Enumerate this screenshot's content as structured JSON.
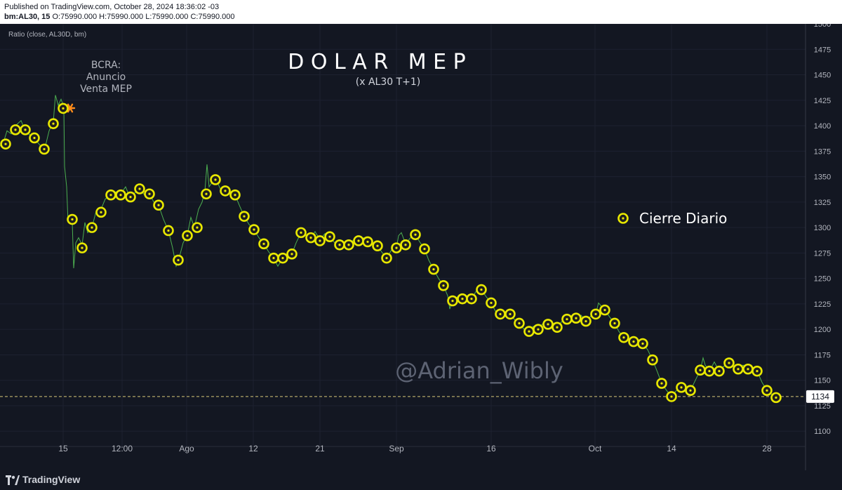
{
  "header": {
    "published": "Published on TradingView.com, October 28, 2024 18:36:02 -03",
    "symbol": "bm:AL30, 15",
    "ohlc": {
      "o_label": "O:",
      "o": "75990.000",
      "h_label": "H:",
      "h": "75990.000",
      "l_label": "L:",
      "l": "75990.000",
      "c_label": "C:",
      "c": "75990.000"
    }
  },
  "indicator_label": "Ratio (close, AL30D, bm)",
  "footer": {
    "brand": "TradingView"
  },
  "colors": {
    "background": "#131722",
    "line": "#4caf50",
    "marker_ring": "#e8e800",
    "marker_center": "#1e1e1e",
    "annotation": "#b2b5be",
    "annotation_star": "#ff8c1a",
    "last_price_badge": "#ffffff",
    "last_price_line": "#d8c878"
  },
  "chart_data": {
    "type": "line",
    "title": "D O L A R   M E P",
    "subtitle": "(x AL30 T+1)",
    "legend": {
      "label": "Cierre Diario",
      "position": "right"
    },
    "watermark": "@Adrian_Wibly",
    "annotation": {
      "lines": [
        "BCRA:",
        "Anuncio",
        "Venta MEP"
      ],
      "x": 90.5,
      "y": 1422
    },
    "last_price": {
      "label": "1134",
      "value": 1134
    },
    "x_ticks": [
      {
        "x": 90,
        "label": "15"
      },
      {
        "x": 174,
        "label": "12:00"
      },
      {
        "x": 266,
        "label": "Ago"
      },
      {
        "x": 361,
        "label": "12"
      },
      {
        "x": 456,
        "label": "21"
      },
      {
        "x": 565,
        "label": "Sep"
      },
      {
        "x": 700,
        "label": "16"
      },
      {
        "x": 848,
        "label": "Oct"
      },
      {
        "x": 957,
        "label": "14"
      },
      {
        "x": 1093,
        "label": "28"
      }
    ],
    "xlim": [
      0,
      1148
    ],
    "y_ticks": [
      1100,
      1125,
      1150,
      1175,
      1200,
      1225,
      1250,
      1275,
      1300,
      1325,
      1350,
      1375,
      1400,
      1425,
      1450,
      1475,
      1500
    ],
    "ylim": [
      1085,
      1500
    ],
    "daily_close": [
      {
        "x": 8,
        "y": 1382
      },
      {
        "x": 22,
        "y": 1396
      },
      {
        "x": 36,
        "y": 1396
      },
      {
        "x": 49,
        "y": 1388
      },
      {
        "x": 63,
        "y": 1377
      },
      {
        "x": 76,
        "y": 1402
      },
      {
        "x": 90,
        "y": 1417
      },
      {
        "x": 103,
        "y": 1308
      },
      {
        "x": 117,
        "y": 1280
      },
      {
        "x": 131,
        "y": 1300
      },
      {
        "x": 144,
        "y": 1315
      },
      {
        "x": 158,
        "y": 1332
      },
      {
        "x": 172,
        "y": 1332
      },
      {
        "x": 186,
        "y": 1330
      },
      {
        "x": 199,
        "y": 1338
      },
      {
        "x": 213,
        "y": 1333
      },
      {
        "x": 226,
        "y": 1322
      },
      {
        "x": 240,
        "y": 1297
      },
      {
        "x": 254,
        "y": 1268
      },
      {
        "x": 267,
        "y": 1292
      },
      {
        "x": 281,
        "y": 1300
      },
      {
        "x": 294,
        "y": 1333
      },
      {
        "x": 307,
        "y": 1347
      },
      {
        "x": 321,
        "y": 1336
      },
      {
        "x": 335,
        "y": 1332
      },
      {
        "x": 348,
        "y": 1311
      },
      {
        "x": 362,
        "y": 1298
      },
      {
        "x": 376,
        "y": 1284
      },
      {
        "x": 390,
        "y": 1270
      },
      {
        "x": 403,
        "y": 1270
      },
      {
        "x": 416,
        "y": 1274
      },
      {
        "x": 429,
        "y": 1295
      },
      {
        "x": 443,
        "y": 1290
      },
      {
        "x": 456,
        "y": 1287
      },
      {
        "x": 470,
        "y": 1291
      },
      {
        "x": 484,
        "y": 1283
      },
      {
        "x": 497,
        "y": 1283
      },
      {
        "x": 511,
        "y": 1287
      },
      {
        "x": 524,
        "y": 1286
      },
      {
        "x": 538,
        "y": 1282
      },
      {
        "x": 551,
        "y": 1270
      },
      {
        "x": 565,
        "y": 1280
      },
      {
        "x": 578,
        "y": 1283
      },
      {
        "x": 592,
        "y": 1293
      },
      {
        "x": 605,
        "y": 1279
      },
      {
        "x": 618,
        "y": 1259
      },
      {
        "x": 632,
        "y": 1243
      },
      {
        "x": 645,
        "y": 1228
      },
      {
        "x": 659,
        "y": 1230
      },
      {
        "x": 672,
        "y": 1230
      },
      {
        "x": 686,
        "y": 1239
      },
      {
        "x": 700,
        "y": 1226
      },
      {
        "x": 713,
        "y": 1215
      },
      {
        "x": 727,
        "y": 1215
      },
      {
        "x": 740,
        "y": 1206
      },
      {
        "x": 754,
        "y": 1198
      },
      {
        "x": 767,
        "y": 1200
      },
      {
        "x": 781,
        "y": 1205
      },
      {
        "x": 794,
        "y": 1202
      },
      {
        "x": 808,
        "y": 1210
      },
      {
        "x": 821,
        "y": 1211
      },
      {
        "x": 835,
        "y": 1208
      },
      {
        "x": 849,
        "y": 1215
      },
      {
        "x": 862,
        "y": 1219
      },
      {
        "x": 876,
        "y": 1206
      },
      {
        "x": 889,
        "y": 1192
      },
      {
        "x": 903,
        "y": 1188
      },
      {
        "x": 916,
        "y": 1186
      },
      {
        "x": 930,
        "y": 1170
      },
      {
        "x": 943,
        "y": 1147
      },
      {
        "x": 957,
        "y": 1134
      },
      {
        "x": 971,
        "y": 1143
      },
      {
        "x": 984,
        "y": 1140
      },
      {
        "x": 998,
        "y": 1160
      },
      {
        "x": 1011,
        "y": 1159
      },
      {
        "x": 1025,
        "y": 1159
      },
      {
        "x": 1039,
        "y": 1167
      },
      {
        "x": 1052,
        "y": 1161
      },
      {
        "x": 1066,
        "y": 1161
      },
      {
        "x": 1079,
        "y": 1159
      },
      {
        "x": 1093,
        "y": 1140
      },
      {
        "x": 1106,
        "y": 1133
      }
    ],
    "intraday": [
      {
        "x": 0,
        "y": 1380
      },
      {
        "x": 6,
        "y": 1386
      },
      {
        "x": 10,
        "y": 1395
      },
      {
        "x": 16,
        "y": 1392
      },
      {
        "x": 22,
        "y": 1400
      },
      {
        "x": 30,
        "y": 1405
      },
      {
        "x": 36,
        "y": 1395
      },
      {
        "x": 44,
        "y": 1390
      },
      {
        "x": 52,
        "y": 1385
      },
      {
        "x": 58,
        "y": 1380
      },
      {
        "x": 64,
        "y": 1378
      },
      {
        "x": 70,
        "y": 1395
      },
      {
        "x": 76,
        "y": 1404
      },
      {
        "x": 79,
        "y": 1430
      },
      {
        "x": 83,
        "y": 1420
      },
      {
        "x": 87,
        "y": 1426
      },
      {
        "x": 91,
        "y": 1418
      },
      {
        "x": 92,
        "y": 1360
      },
      {
        "x": 95,
        "y": 1340
      },
      {
        "x": 97,
        "y": 1305
      },
      {
        "x": 100,
        "y": 1310
      },
      {
        "x": 103,
        "y": 1305
      },
      {
        "x": 105,
        "y": 1260
      },
      {
        "x": 108,
        "y": 1285
      },
      {
        "x": 112,
        "y": 1290
      },
      {
        "x": 117,
        "y": 1283
      },
      {
        "x": 121,
        "y": 1305
      },
      {
        "x": 125,
        "y": 1295
      },
      {
        "x": 131,
        "y": 1300
      },
      {
        "x": 137,
        "y": 1316
      },
      {
        "x": 144,
        "y": 1318
      },
      {
        "x": 150,
        "y": 1328
      },
      {
        "x": 158,
        "y": 1332
      },
      {
        "x": 165,
        "y": 1335
      },
      {
        "x": 172,
        "y": 1333
      },
      {
        "x": 179,
        "y": 1340
      },
      {
        "x": 186,
        "y": 1328
      },
      {
        "x": 192,
        "y": 1334
      },
      {
        "x": 199,
        "y": 1338
      },
      {
        "x": 206,
        "y": 1332
      },
      {
        "x": 213,
        "y": 1333
      },
      {
        "x": 220,
        "y": 1324
      },
      {
        "x": 226,
        "y": 1322
      },
      {
        "x": 233,
        "y": 1308
      },
      {
        "x": 240,
        "y": 1297
      },
      {
        "x": 246,
        "y": 1280
      },
      {
        "x": 251,
        "y": 1262
      },
      {
        "x": 256,
        "y": 1272
      },
      {
        "x": 261,
        "y": 1285
      },
      {
        "x": 267,
        "y": 1293
      },
      {
        "x": 272,
        "y": 1310
      },
      {
        "x": 277,
        "y": 1300
      },
      {
        "x": 283,
        "y": 1318
      },
      {
        "x": 288,
        "y": 1325
      },
      {
        "x": 292,
        "y": 1336
      },
      {
        "x": 295,
        "y": 1362
      },
      {
        "x": 298,
        "y": 1340
      },
      {
        "x": 303,
        "y": 1345
      },
      {
        "x": 308,
        "y": 1347
      },
      {
        "x": 314,
        "y": 1338
      },
      {
        "x": 321,
        "y": 1336
      },
      {
        "x": 328,
        "y": 1333
      },
      {
        "x": 335,
        "y": 1332
      },
      {
        "x": 341,
        "y": 1322
      },
      {
        "x": 348,
        "y": 1311
      },
      {
        "x": 355,
        "y": 1303
      },
      {
        "x": 362,
        "y": 1298
      },
      {
        "x": 369,
        "y": 1290
      },
      {
        "x": 376,
        "y": 1284
      },
      {
        "x": 383,
        "y": 1276
      },
      {
        "x": 390,
        "y": 1270
      },
      {
        "x": 396,
        "y": 1262
      },
      {
        "x": 403,
        "y": 1270
      },
      {
        "x": 410,
        "y": 1272
      },
      {
        "x": 416,
        "y": 1274
      },
      {
        "x": 422,
        "y": 1285
      },
      {
        "x": 429,
        "y": 1295
      },
      {
        "x": 436,
        "y": 1292
      },
      {
        "x": 443,
        "y": 1290
      },
      {
        "x": 449,
        "y": 1296
      },
      {
        "x": 456,
        "y": 1288
      },
      {
        "x": 463,
        "y": 1294
      },
      {
        "x": 470,
        "y": 1291
      },
      {
        "x": 477,
        "y": 1285
      },
      {
        "x": 484,
        "y": 1283
      },
      {
        "x": 491,
        "y": 1285
      },
      {
        "x": 497,
        "y": 1283
      },
      {
        "x": 504,
        "y": 1288
      },
      {
        "x": 511,
        "y": 1287
      },
      {
        "x": 518,
        "y": 1290
      },
      {
        "x": 524,
        "y": 1286
      },
      {
        "x": 531,
        "y": 1284
      },
      {
        "x": 538,
        "y": 1282
      },
      {
        "x": 544,
        "y": 1276
      },
      {
        "x": 551,
        "y": 1270
      },
      {
        "x": 558,
        "y": 1278
      },
      {
        "x": 565,
        "y": 1280
      },
      {
        "x": 568,
        "y": 1292
      },
      {
        "x": 572,
        "y": 1295
      },
      {
        "x": 578,
        "y": 1284
      },
      {
        "x": 585,
        "y": 1290
      },
      {
        "x": 592,
        "y": 1293
      },
      {
        "x": 598,
        "y": 1286
      },
      {
        "x": 605,
        "y": 1279
      },
      {
        "x": 611,
        "y": 1268
      },
      {
        "x": 618,
        "y": 1259
      },
      {
        "x": 625,
        "y": 1250
      },
      {
        "x": 632,
        "y": 1243
      },
      {
        "x": 638,
        "y": 1233
      },
      {
        "x": 641,
        "y": 1220
      },
      {
        "x": 645,
        "y": 1228
      },
      {
        "x": 652,
        "y": 1232
      },
      {
        "x": 659,
        "y": 1230
      },
      {
        "x": 666,
        "y": 1233
      },
      {
        "x": 672,
        "y": 1230
      },
      {
        "x": 679,
        "y": 1238
      },
      {
        "x": 686,
        "y": 1239
      },
      {
        "x": 693,
        "y": 1232
      },
      {
        "x": 700,
        "y": 1226
      },
      {
        "x": 706,
        "y": 1218
      },
      {
        "x": 713,
        "y": 1215
      },
      {
        "x": 720,
        "y": 1217
      },
      {
        "x": 727,
        "y": 1215
      },
      {
        "x": 734,
        "y": 1209
      },
      {
        "x": 740,
        "y": 1206
      },
      {
        "x": 747,
        "y": 1200
      },
      {
        "x": 754,
        "y": 1198
      },
      {
        "x": 760,
        "y": 1203
      },
      {
        "x": 767,
        "y": 1200
      },
      {
        "x": 774,
        "y": 1206
      },
      {
        "x": 781,
        "y": 1205
      },
      {
        "x": 788,
        "y": 1201
      },
      {
        "x": 794,
        "y": 1202
      },
      {
        "x": 801,
        "y": 1208
      },
      {
        "x": 808,
        "y": 1210
      },
      {
        "x": 815,
        "y": 1213
      },
      {
        "x": 821,
        "y": 1211
      },
      {
        "x": 828,
        "y": 1214
      },
      {
        "x": 835,
        "y": 1208
      },
      {
        "x": 842,
        "y": 1213
      },
      {
        "x": 849,
        "y": 1215
      },
      {
        "x": 853,
        "y": 1226
      },
      {
        "x": 858,
        "y": 1222
      },
      {
        "x": 862,
        "y": 1219
      },
      {
        "x": 869,
        "y": 1212
      },
      {
        "x": 876,
        "y": 1206
      },
      {
        "x": 882,
        "y": 1198
      },
      {
        "x": 889,
        "y": 1192
      },
      {
        "x": 896,
        "y": 1190
      },
      {
        "x": 903,
        "y": 1188
      },
      {
        "x": 910,
        "y": 1185
      },
      {
        "x": 916,
        "y": 1186
      },
      {
        "x": 923,
        "y": 1180
      },
      {
        "x": 930,
        "y": 1170
      },
      {
        "x": 937,
        "y": 1158
      },
      {
        "x": 943,
        "y": 1147
      },
      {
        "x": 950,
        "y": 1140
      },
      {
        "x": 957,
        "y": 1134
      },
      {
        "x": 964,
        "y": 1140
      },
      {
        "x": 971,
        "y": 1143
      },
      {
        "x": 978,
        "y": 1138
      },
      {
        "x": 984,
        "y": 1140
      },
      {
        "x": 991,
        "y": 1150
      },
      {
        "x": 998,
        "y": 1160
      },
      {
        "x": 1002,
        "y": 1172
      },
      {
        "x": 1005,
        "y": 1165
      },
      {
        "x": 1011,
        "y": 1159
      },
      {
        "x": 1018,
        "y": 1168
      },
      {
        "x": 1025,
        "y": 1159
      },
      {
        "x": 1032,
        "y": 1164
      },
      {
        "x": 1039,
        "y": 1167
      },
      {
        "x": 1046,
        "y": 1163
      },
      {
        "x": 1052,
        "y": 1161
      },
      {
        "x": 1059,
        "y": 1165
      },
      {
        "x": 1066,
        "y": 1161
      },
      {
        "x": 1073,
        "y": 1162
      },
      {
        "x": 1079,
        "y": 1159
      },
      {
        "x": 1086,
        "y": 1148
      },
      {
        "x": 1093,
        "y": 1140
      },
      {
        "x": 1100,
        "y": 1136
      },
      {
        "x": 1106,
        "y": 1133
      }
    ]
  }
}
